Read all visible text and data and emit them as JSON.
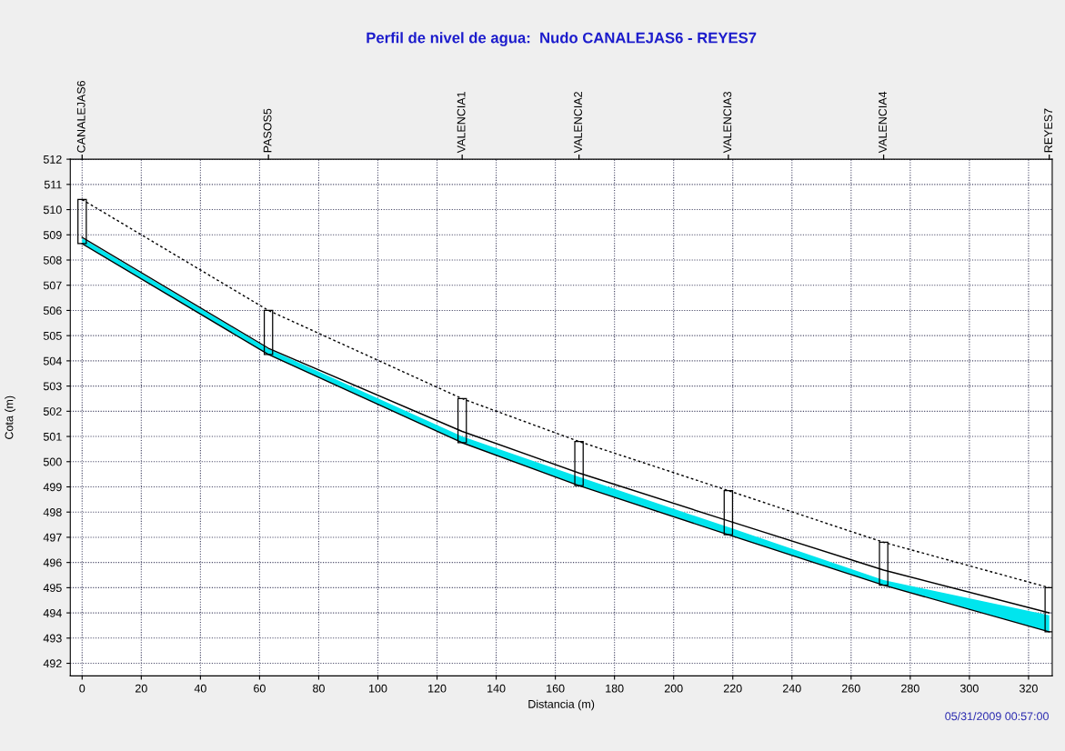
{
  "chart_data": {
    "type": "line",
    "title": "Perfil de nivel de agua:  Nudo CANALEJAS6 - REYES7",
    "xlabel": "Distancia (m)",
    "ylabel": "Cota (m)",
    "x": [
      0,
      63,
      128.5,
      168,
      218.5,
      271,
      327
    ],
    "series": [
      {
        "color": "#000000",
        "line_style": "dotted",
        "values": [
          510.4,
          506.0,
          502.5,
          500.8,
          498.85,
          496.8,
          495.0
        ]
      },
      {
        "color": "#000000",
        "line_style": "solid",
        "values": [
          508.65,
          504.25,
          500.75,
          499.05,
          497.1,
          495.1,
          493.25
        ]
      },
      {
        "type": "area",
        "color": "#00e5ee",
        "values": [
          508.87,
          504.47,
          501.0,
          499.4,
          497.4,
          495.3,
          493.9
        ]
      },
      {
        "color": "#000000",
        "line_style": "solid",
        "values": [
          508.9,
          504.5,
          501.2,
          499.55,
          497.65,
          495.7,
          494.0
        ]
      }
    ],
    "xlim": [
      -4,
      328
    ],
    "xticks": [
      0,
      20,
      40,
      60,
      80,
      100,
      120,
      140,
      160,
      180,
      200,
      220,
      240,
      260,
      280,
      300,
      320
    ],
    "ylim": [
      491.5,
      512
    ],
    "yticks": [
      492,
      493,
      494,
      495,
      496,
      497,
      498,
      499,
      500,
      501,
      502,
      503,
      504,
      505,
      506,
      507,
      508,
      509,
      510,
      511,
      512
    ],
    "grid": true,
    "annotations": [
      {
        "text": "CANALEJAS6",
        "x": 0
      },
      {
        "text": "PASOS5",
        "x": 63
      },
      {
        "text": "VALENCIA1",
        "x": 128.5
      },
      {
        "text": "VALENCIA2",
        "x": 168
      },
      {
        "text": "VALENCIA3",
        "x": 218.5
      },
      {
        "text": "VALENCIA4",
        "x": 271
      },
      {
        "text": "REYES7",
        "x": 327
      },
      "05/31/2009 00:57:00"
    ]
  }
}
